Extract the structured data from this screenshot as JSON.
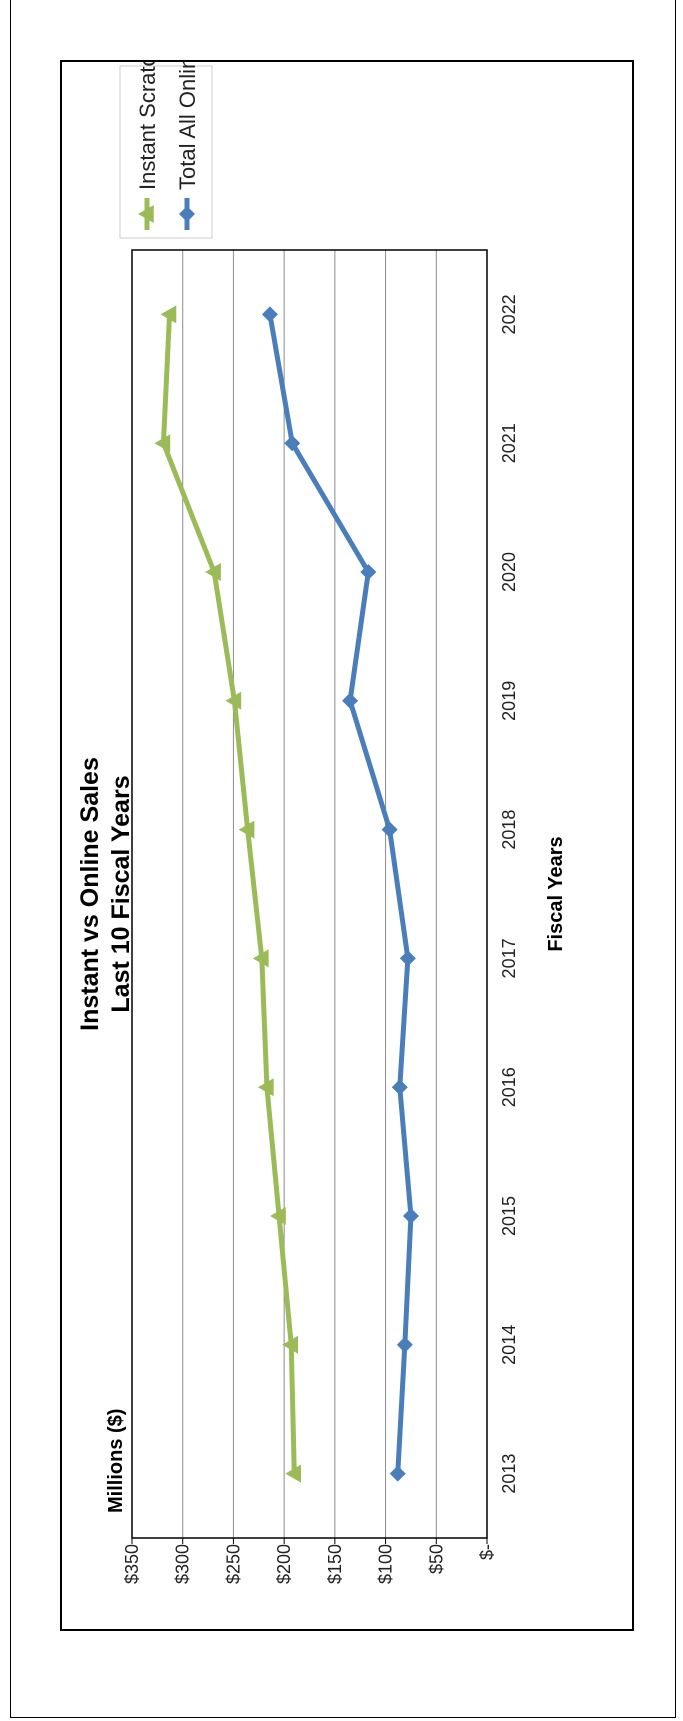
{
  "chart_data": {
    "type": "line",
    "orientation": "rotated-90-ccw",
    "title": [
      "Instant vs Online Sales",
      "Last 10 Fiscal Years"
    ],
    "xlabel": "Fiscal Years",
    "ylabel": "Millions ($)",
    "categories": [
      "2013",
      "2014",
      "2015",
      "2016",
      "2017",
      "2018",
      "2019",
      "2020",
      "2021",
      "2022"
    ],
    "y_ticks": [
      0,
      50,
      100,
      150,
      200,
      250,
      300,
      350
    ],
    "y_tick_labels": [
      "$-",
      "$50",
      "$100",
      "$150",
      "$200",
      "$250",
      "$300",
      "$350"
    ],
    "ylim": [
      0,
      350
    ],
    "grid": true,
    "legend_position": "top-right",
    "series": [
      {
        "name": "Instant Scratch Games",
        "color": "#9bbb59",
        "marker": "triangle",
        "values": [
          190,
          193,
          205,
          217,
          222,
          236,
          249,
          269,
          319,
          313
        ]
      },
      {
        "name": "Total All Online Games",
        "color": "#4a7ebb",
        "marker": "diamond",
        "values": [
          88,
          81,
          75,
          86,
          78,
          96,
          135,
          117,
          192,
          214
        ]
      }
    ]
  }
}
